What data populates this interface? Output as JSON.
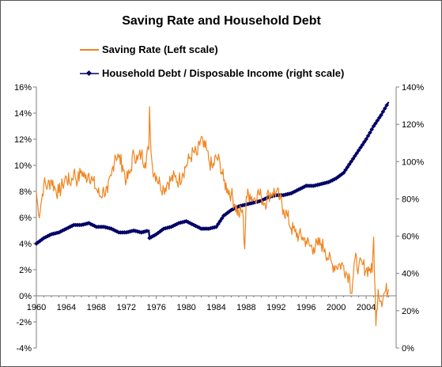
{
  "chart_data": {
    "type": "line",
    "title": "Saving Rate and Household Debt",
    "legend_placement": "top",
    "grid": false,
    "colors": {
      "saving_rate": "#F0841E",
      "household_debt": "#000066",
      "axis": "#7f7f7f"
    },
    "x_axis": {
      "range": [
        1960,
        2008
      ],
      "tick_labels": [
        "1960",
        "1964",
        "1968",
        "1972",
        "1976",
        "1980",
        "1984",
        "1988",
        "1992",
        "1996",
        "2000",
        "2004"
      ],
      "tick_values": [
        1960,
        1964,
        1968,
        1972,
        1976,
        1980,
        1984,
        1988,
        1992,
        1996,
        2000,
        2004
      ]
    },
    "y_left": {
      "range": [
        -4,
        16
      ],
      "tick_labels": [
        "16%",
        "14%",
        "12%",
        "10%",
        "8%",
        "6%",
        "4%",
        "2%",
        "0%",
        "-2%",
        "-4%"
      ],
      "tick_values": [
        16,
        14,
        12,
        10,
        8,
        6,
        4,
        2,
        0,
        -2,
        -4
      ]
    },
    "y_right": {
      "range": [
        0,
        140
      ],
      "tick_labels": [
        "140%",
        "120%",
        "100%",
        "80%",
        "60%",
        "40%",
        "20%",
        "0%"
      ],
      "tick_values": [
        140,
        120,
        100,
        80,
        60,
        40,
        20,
        0
      ]
    },
    "series": [
      {
        "name": "Saving Rate (Left scale)",
        "axis": "left",
        "style": "line",
        "x": [
          1960,
          1960.3,
          1960.6,
          1961,
          1961.5,
          1962,
          1962.5,
          1963,
          1963.5,
          1964,
          1964.5,
          1965,
          1965.5,
          1966,
          1966.5,
          1967,
          1967.5,
          1968,
          1968.5,
          1969,
          1969.5,
          1970,
          1970.5,
          1971,
          1971.5,
          1972,
          1972.5,
          1973,
          1973.5,
          1974,
          1974.5,
          1975,
          1975.1,
          1975.3,
          1975.5,
          1976,
          1976.5,
          1977,
          1977.5,
          1978,
          1978.5,
          1979,
          1979.5,
          1980,
          1980.5,
          1981,
          1981.5,
          1982,
          1982.3,
          1982.7,
          1983,
          1983.5,
          1984,
          1984.5,
          1985,
          1985.5,
          1986,
          1986.5,
          1987,
          1987.5,
          1987.8,
          1988,
          1988.5,
          1989,
          1989.5,
          1990,
          1990.5,
          1991,
          1991.5,
          1992,
          1992.5,
          1993,
          1993.5,
          1994,
          1994.5,
          1995,
          1995.5,
          1996,
          1996.5,
          1997,
          1997.5,
          1998,
          1998.5,
          1999,
          1999.5,
          2000,
          2000.5,
          2001,
          2001.5,
          2001.7,
          2002,
          2002.5,
          2003,
          2003.5,
          2004,
          2004.5,
          2004.8,
          2005,
          2005.3,
          2005.6,
          2006,
          2006.5,
          2007
        ],
        "y": [
          8.0,
          6.2,
          7.0,
          8.6,
          8.4,
          8.9,
          8.2,
          7.9,
          8.5,
          9.1,
          8.6,
          9.5,
          8.8,
          9.6,
          9.0,
          9.4,
          8.8,
          8.2,
          7.6,
          8.1,
          7.9,
          9.2,
          10.8,
          10.6,
          10.0,
          8.8,
          9.4,
          11.0,
          10.4,
          10.9,
          10.2,
          11.2,
          14.5,
          11.0,
          9.8,
          9.2,
          8.6,
          8.2,
          8.7,
          8.9,
          9.1,
          8.8,
          9.4,
          10.0,
          10.6,
          11.0,
          10.8,
          12.2,
          11.4,
          11.2,
          10.4,
          9.8,
          10.6,
          10.2,
          8.8,
          8.2,
          7.8,
          7.0,
          6.2,
          6.6,
          3.6,
          7.6,
          7.8,
          7.4,
          7.9,
          7.6,
          7.1,
          7.8,
          7.9,
          8.0,
          7.4,
          6.6,
          6.1,
          5.2,
          4.9,
          4.6,
          4.5,
          4.2,
          3.8,
          3.7,
          3.9,
          4.0,
          3.6,
          2.8,
          2.4,
          2.3,
          2.4,
          2.3,
          1.6,
          1.7,
          0.2,
          2.8,
          2.2,
          2.4,
          2.0,
          2.1,
          1.8,
          4.5,
          -2.3,
          0.5,
          -0.4,
          0.3,
          0.5
        ]
      },
      {
        "name": "Household Debt / Disposable Income (right scale)",
        "axis": "right",
        "style": "markers",
        "x": [
          1960,
          1961,
          1962,
          1963,
          1964,
          1965,
          1966,
          1967,
          1968,
          1969,
          1970,
          1971,
          1972,
          1973,
          1974,
          1975,
          1975.1,
          1976,
          1977,
          1978,
          1979,
          1980,
          1981,
          1982,
          1983,
          1984,
          1985,
          1986,
          1987,
          1988,
          1989,
          1990,
          1991,
          1992,
          1993,
          1994,
          1995,
          1996,
          1997,
          1998,
          1999,
          2000,
          2001,
          2002,
          2003,
          2004,
          2005,
          2006,
          2007
        ],
        "y": [
          56,
          59,
          61,
          62,
          64,
          66,
          66,
          67,
          65,
          65,
          64,
          62,
          62,
          63,
          62,
          63,
          59,
          61,
          64,
          65,
          67,
          68,
          66,
          64,
          64,
          65,
          71,
          74,
          76,
          77,
          78,
          79,
          81,
          82,
          82,
          83,
          85,
          87,
          87,
          88,
          89,
          91,
          94,
          100,
          106,
          112,
          119,
          125,
          132
        ]
      }
    ]
  }
}
